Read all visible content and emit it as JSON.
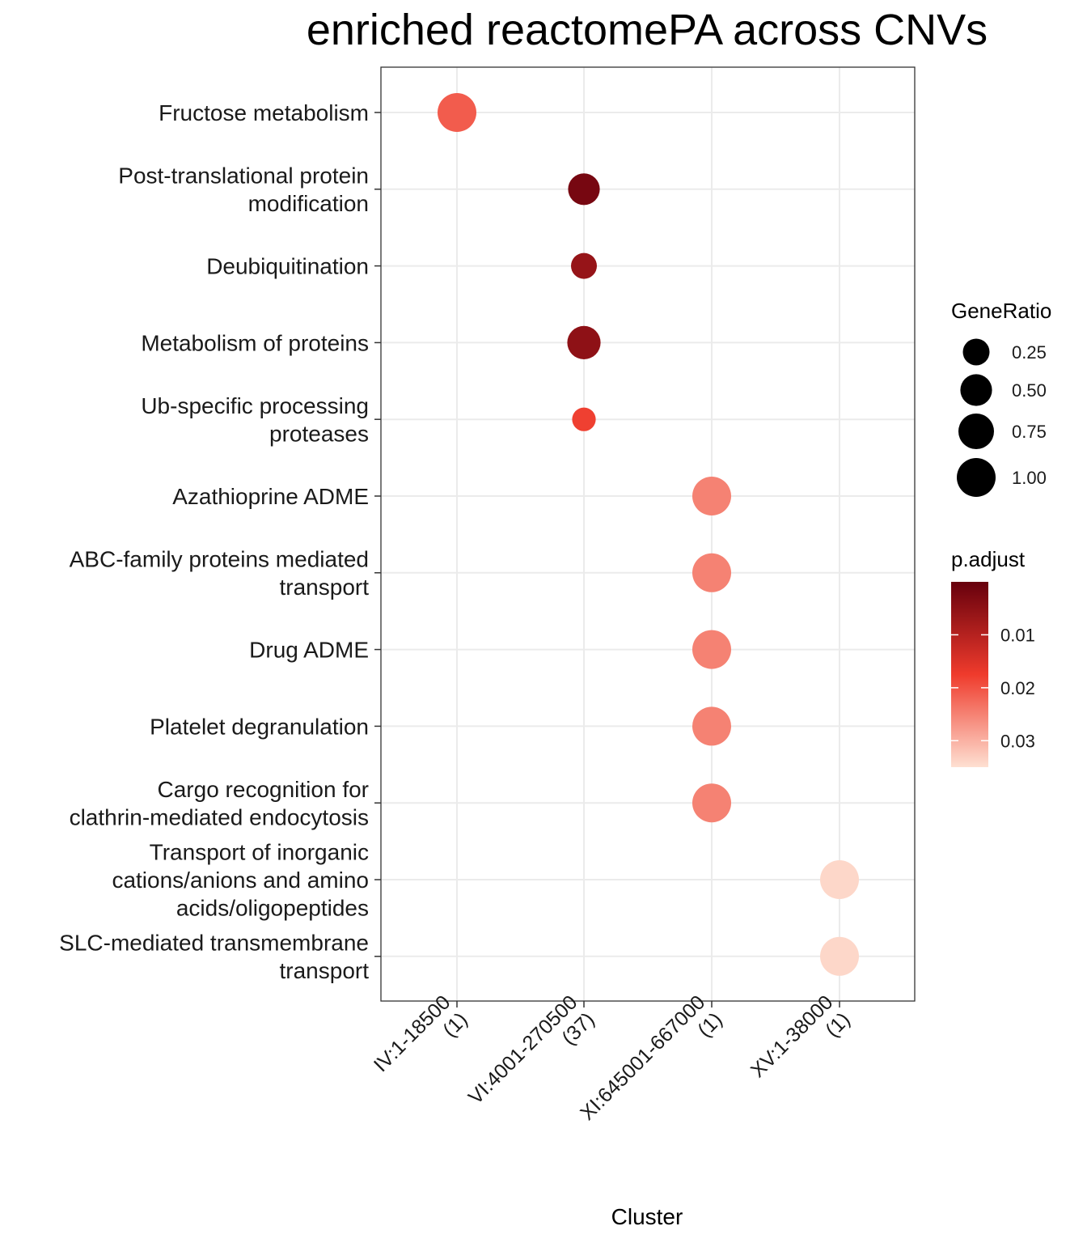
{
  "chart_data": {
    "type": "scatter",
    "title": "enriched reactomePA across CNVs",
    "xlabel": "Cluster",
    "ylabel": "",
    "x_categories": [
      [
        "IV:1-18500",
        "(1)"
      ],
      [
        "VI:4001-270500",
        "(37)"
      ],
      [
        "XI:645001-667000",
        "(1)"
      ],
      [
        "XV:1-38000",
        "(1)"
      ]
    ],
    "y_categories": [
      [
        "Fructose metabolism"
      ],
      [
        "Post-translational protein",
        "modification"
      ],
      [
        "Deubiquitination"
      ],
      [
        "Metabolism of proteins"
      ],
      [
        "Ub-specific processing",
        "proteases"
      ],
      [
        "Azathioprine ADME"
      ],
      [
        "ABC-family proteins mediated",
        "transport"
      ],
      [
        "Drug ADME"
      ],
      [
        "Platelet degranulation "
      ],
      [
        "Cargo recognition for",
        "clathrin-mediated endocytosis"
      ],
      [
        "Transport of inorganic",
        "cations/anions and amino",
        "acids/oligopeptides"
      ],
      [
        "SLC-mediated transmembrane",
        "transport"
      ]
    ],
    "points": [
      {
        "x": 0,
        "y": 0,
        "gene_ratio": 1.0,
        "p_adjust": 0.021
      },
      {
        "x": 1,
        "y": 1,
        "gene_ratio": 0.5,
        "p_adjust": 0.002
      },
      {
        "x": 1,
        "y": 2,
        "gene_ratio": 0.22,
        "p_adjust": 0.006
      },
      {
        "x": 1,
        "y": 3,
        "gene_ratio": 0.6,
        "p_adjust": 0.005
      },
      {
        "x": 1,
        "y": 4,
        "gene_ratio": 0.14,
        "p_adjust": 0.018
      },
      {
        "x": 2,
        "y": 5,
        "gene_ratio": 1.0,
        "p_adjust": 0.025
      },
      {
        "x": 2,
        "y": 6,
        "gene_ratio": 1.0,
        "p_adjust": 0.025
      },
      {
        "x": 2,
        "y": 7,
        "gene_ratio": 1.0,
        "p_adjust": 0.025
      },
      {
        "x": 2,
        "y": 8,
        "gene_ratio": 1.0,
        "p_adjust": 0.025
      },
      {
        "x": 2,
        "y": 9,
        "gene_ratio": 1.0,
        "p_adjust": 0.025
      },
      {
        "x": 3,
        "y": 10,
        "gene_ratio": 1.0,
        "p_adjust": 0.034
      },
      {
        "x": 3,
        "y": 11,
        "gene_ratio": 1.0,
        "p_adjust": 0.034
      }
    ],
    "size_legend": {
      "title": "GeneRatio",
      "values": [
        0.25,
        0.5,
        0.75,
        1.0
      ],
      "labels": [
        "0.25",
        "0.50",
        "0.75",
        "1.00"
      ]
    },
    "color_legend": {
      "title": "p.adjust",
      "range": [
        0.0,
        0.035
      ],
      "ticks": [
        0.01,
        0.02,
        0.03
      ],
      "labels": [
        "0.01",
        "0.02",
        "0.03"
      ],
      "low_color": "#67000d",
      "mid_color": "#ef3b2c",
      "high_color": "#fee0d2"
    },
    "grid": true,
    "legend_position": "right"
  }
}
